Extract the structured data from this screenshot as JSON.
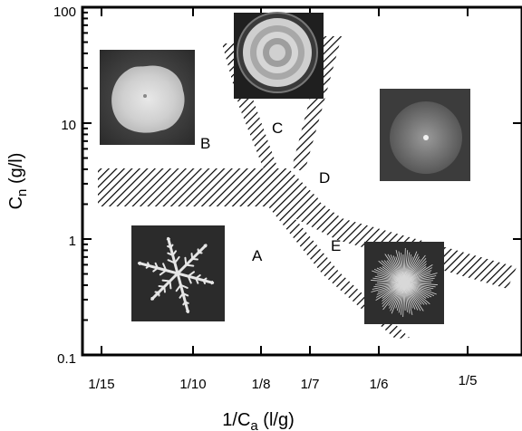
{
  "chart_data": {
    "type": "scatter",
    "title": "",
    "xlabel": "1/C",
    "xlabel_subscript": "a",
    "xlabel_units": " (l/g)",
    "ylabel": "C",
    "ylabel_subscript": "n",
    "ylabel_units": " (g/l)",
    "x_ticks": [
      "1/15",
      "1/10",
      "1/8",
      "1/7",
      "1/6",
      "1/5"
    ],
    "y_ticks": [
      "100",
      "10",
      "1",
      "0.1"
    ],
    "y_scale": "log",
    "ylim": [
      0.1,
      100
    ],
    "grid": false,
    "region_labels": [
      "A",
      "B",
      "C",
      "D",
      "E"
    ],
    "images": [
      {
        "name": "region-B-colony-photo",
        "description": "dense disc colony"
      },
      {
        "name": "region-C-colony-photo",
        "description": "concentric ring colony"
      },
      {
        "name": "region-D-colony-photo",
        "description": "homogeneous spreading colony"
      },
      {
        "name": "region-A-colony-photo",
        "description": "branched DLA-like colony"
      },
      {
        "name": "region-E-colony-photo",
        "description": "dense branching colony"
      }
    ],
    "boundary_bands": [
      {
        "name": "B-D-boundary",
        "style": "hatched"
      },
      {
        "name": "A-E-boundary",
        "style": "hatched"
      },
      {
        "name": "C-left-boundary",
        "style": "hatched"
      },
      {
        "name": "C-right-boundary",
        "style": "hatched"
      },
      {
        "name": "D-E-boundary",
        "style": "hatched"
      }
    ]
  }
}
